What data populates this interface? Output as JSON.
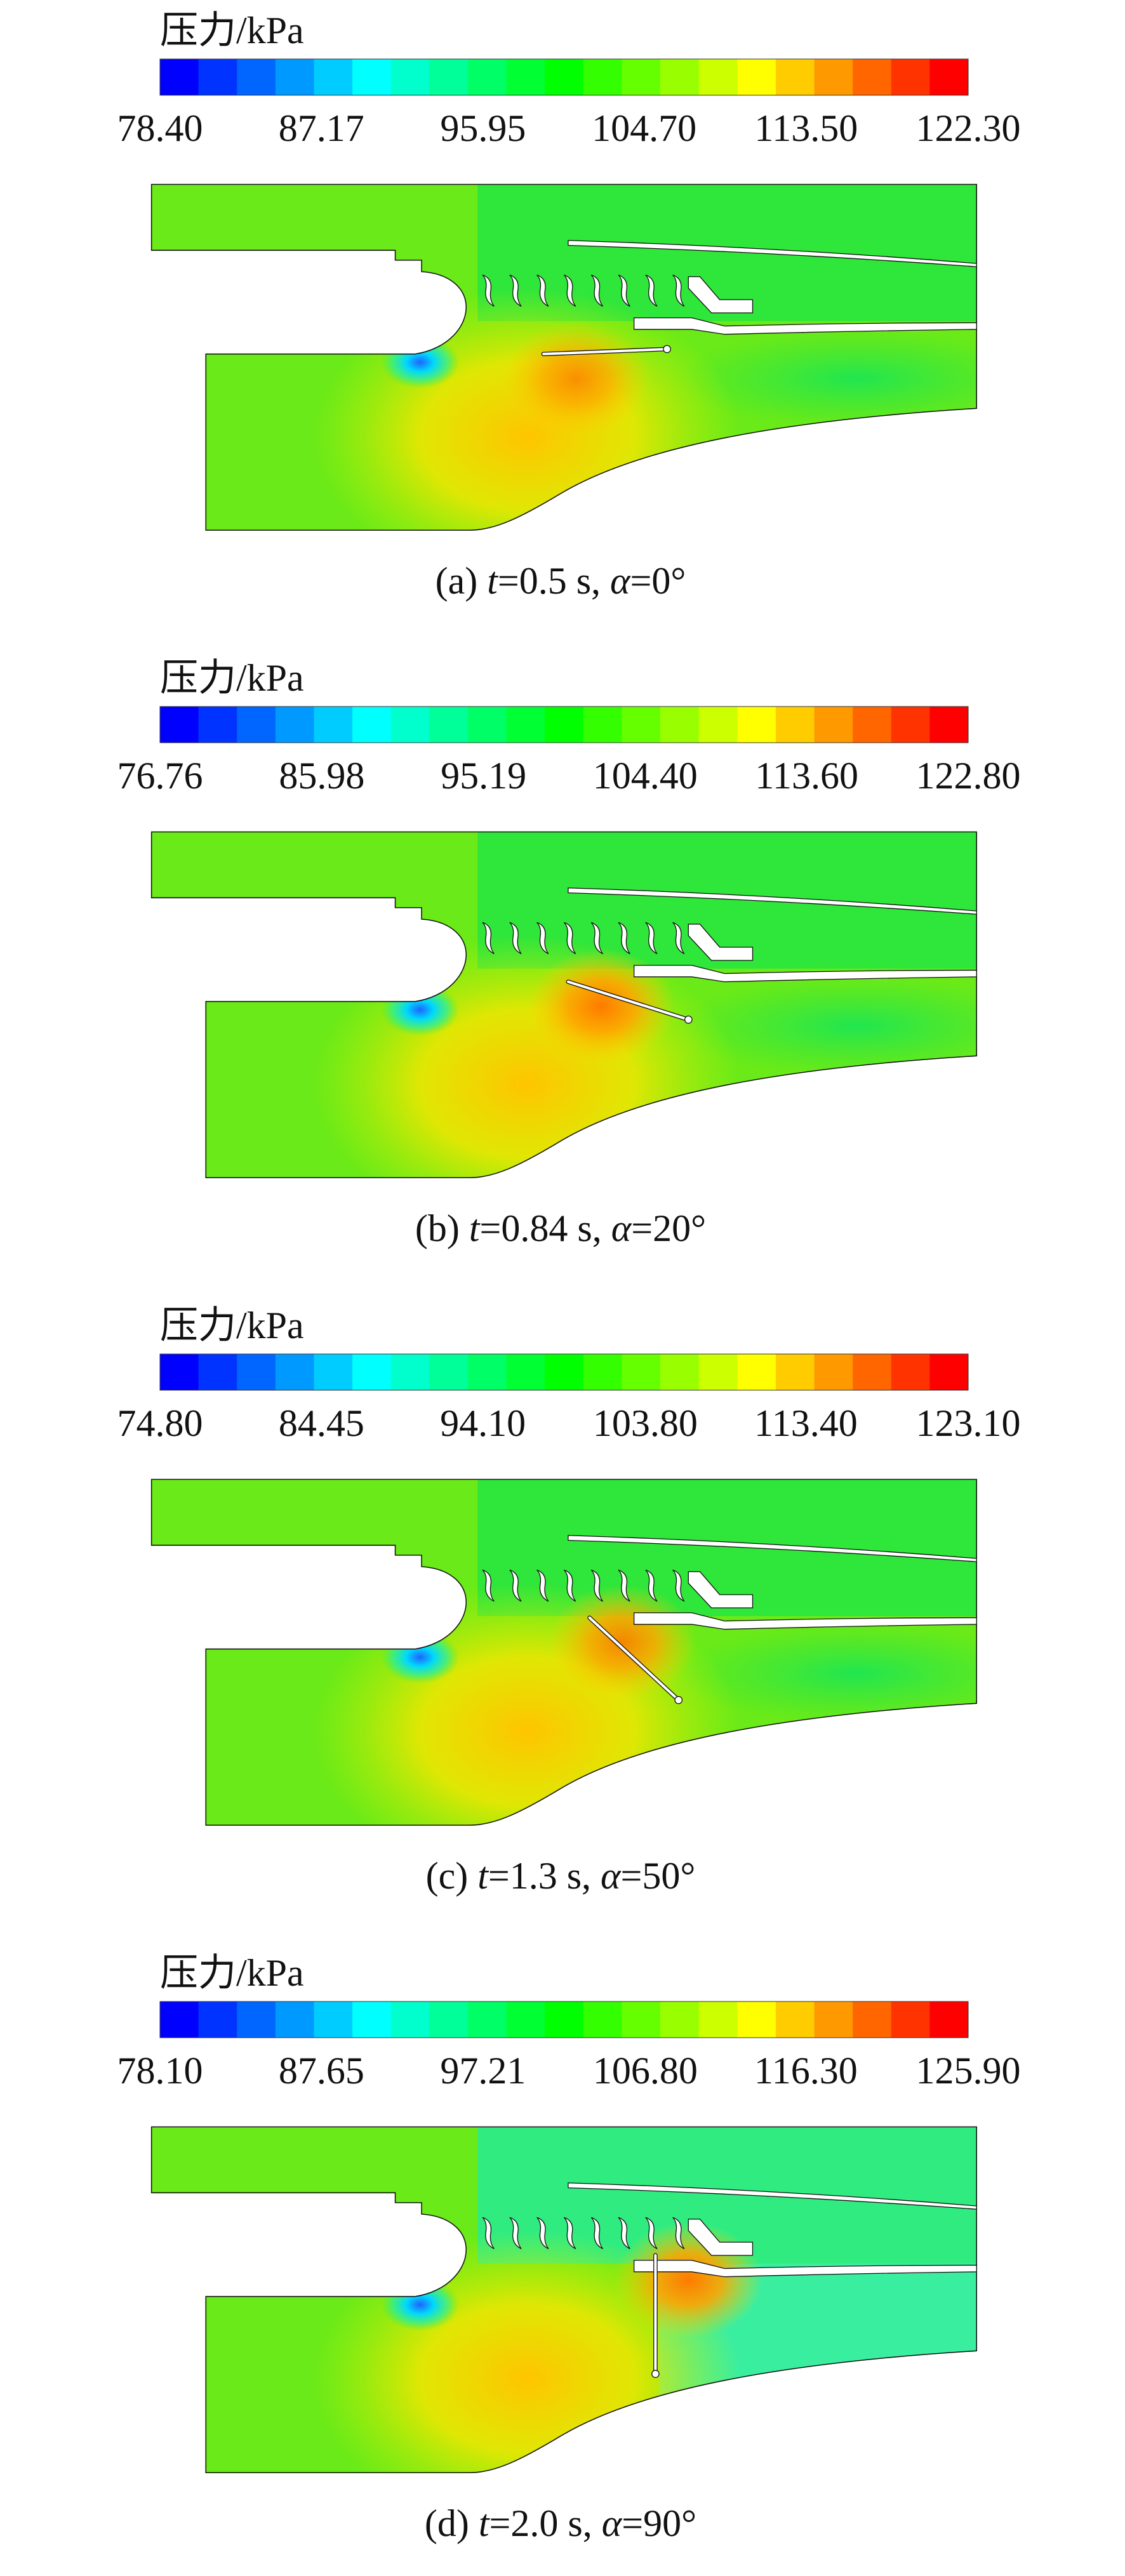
{
  "panels": [
    {
      "colorbar_label": "压力/kPa",
      "ticks": [
        {
          "value": 78.4,
          "label": "78.40"
        },
        87.17,
        95.95,
        {
          "value": 104.7,
          "label": "104.70"
        },
        {
          "value": 113.5,
          "label": "113.50"
        },
        {
          "value": 122.3,
          "label": "122.30"
        }
      ],
      "caption": [
        "(a) ",
        "t",
        "=0.5 s, ",
        "α",
        "=0°"
      ]
    },
    {
      "colorbar_label": "压力/kPa",
      "ticks": [
        76.76,
        85.98,
        95.19,
        {
          "value": 104.4,
          "label": "104.40"
        },
        {
          "value": 113.6,
          "label": "113.60"
        },
        {
          "value": 122.8,
          "label": "122.80"
        }
      ],
      "caption": [
        "(b) ",
        "t",
        "=0.84 s, ",
        "α",
        "=20°"
      ]
    },
    {
      "colorbar_label": "压力/kPa",
      "ticks": [
        {
          "value": 74.8,
          "label": "74.80"
        },
        84.45,
        {
          "value": 94.1,
          "label": "94.10"
        },
        {
          "value": 103.8,
          "label": "103.80"
        },
        {
          "value": 113.4,
          "label": "113.40"
        },
        {
          "value": 123.1,
          "label": "123.10"
        }
      ],
      "caption": [
        "(c) ",
        "t",
        "=1.3 s, ",
        "α",
        "=50°"
      ]
    },
    {
      "colorbar_label": "压力/kPa",
      "ticks": [
        {
          "value": 78.1,
          "label": "78.10"
        },
        87.65,
        97.21,
        {
          "value": 106.8,
          "label": "106.80"
        },
        {
          "value": 116.3,
          "label": "116.30"
        },
        {
          "value": 125.9,
          "label": "125.90"
        }
      ],
      "caption": [
        "(d) ",
        "t",
        "=2.0 s, ",
        "α",
        "=90°"
      ]
    }
  ]
}
